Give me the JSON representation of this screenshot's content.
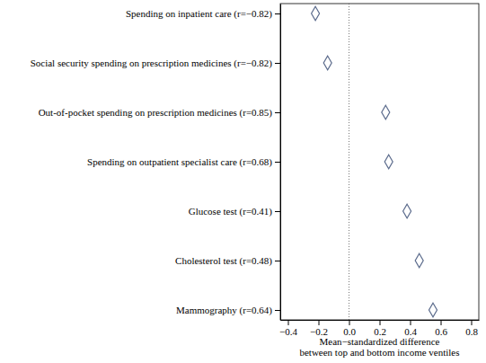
{
  "chart_data": {
    "type": "scatter",
    "orientation": "horizontal",
    "categories": [
      "Spending on inpatient care (r=−0.82)",
      "Social security spending on prescription medicines (r=−0.82)",
      "Out-of-pocket spending on prescription medicines (r=0.85)",
      "Spending on outpatient specialist care (r=0.68)",
      "Glucose test (r=0.41)",
      "Cholesterol test (r=0.48)",
      "Mammography (r=0.64)"
    ],
    "values": [
      -0.22,
      -0.14,
      0.24,
      0.26,
      0.38,
      0.46,
      0.55
    ],
    "xlabel": [
      "Mean−standardized difference",
      "between top and bottom income ventiles"
    ],
    "xlim": [
      -0.45,
      0.85
    ],
    "xticks": [
      {
        "value": -0.4,
        "label": "−0.4"
      },
      {
        "value": -0.2,
        "label": "−0.2"
      },
      {
        "value": 0,
        "label": "0.0"
      },
      {
        "value": 0.2,
        "label": "0.2"
      },
      {
        "value": 0.4,
        "label": "0.4"
      },
      {
        "value": 0.6,
        "label": "0.6"
      },
      {
        "value": 0.8,
        "label": "0.8"
      }
    ],
    "xline": 0,
    "color": "#5b6b8c",
    "marker": "diamond",
    "grid": false
  }
}
